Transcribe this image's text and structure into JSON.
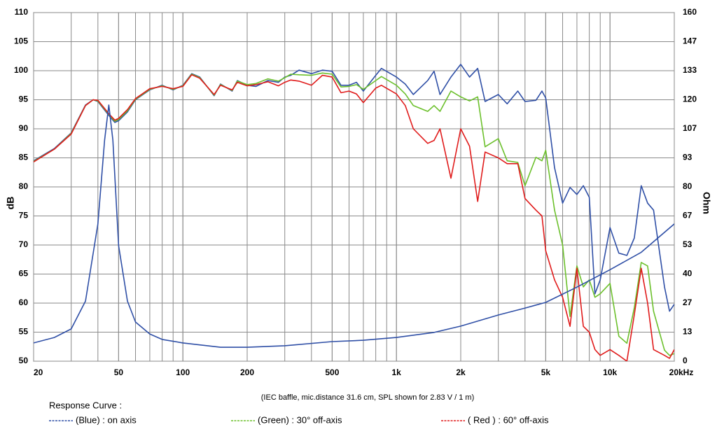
{
  "chart_data": {
    "type": "line",
    "xscale": "log",
    "grid": true,
    "ylabel": "dB",
    "y2label": "Ohm",
    "note": "(IEC baffle, mic.distance 31.6 cm, SPL shown for 2.83 V / 1 m)",
    "legend_title": "Response Curve :",
    "legend": "bottom",
    "xlim": [
      20,
      20000
    ],
    "xticks": [
      20,
      50,
      100,
      200,
      500,
      {
        "value": 1000,
        "label": "1k"
      },
      {
        "value": 2000,
        "label": "2k"
      },
      {
        "value": 5000,
        "label": "5k"
      },
      {
        "value": 10000,
        "label": "10k"
      },
      {
        "value": 20000,
        "label": "20kHz"
      }
    ],
    "ylim": [
      50,
      110
    ],
    "yticks": [
      50,
      55,
      60,
      65,
      70,
      75,
      80,
      85,
      90,
      95,
      100,
      105,
      110
    ],
    "y2lim": [
      0,
      160
    ],
    "y2ticks": [
      0,
      {
        "value": 13.33,
        "label": "13"
      },
      {
        "value": 26.67,
        "label": "27"
      },
      40,
      {
        "value": 53.33,
        "label": "53"
      },
      {
        "value": 66.67,
        "label": "67"
      },
      80,
      {
        "value": 93.33,
        "label": "93"
      },
      {
        "value": 106.67,
        "label": "107"
      },
      120,
      {
        "value": 133.33,
        "label": "133"
      },
      {
        "value": 146.67,
        "label": "147"
      },
      160
    ],
    "x": [
      20,
      25,
      30,
      35,
      38,
      40,
      45,
      48,
      50,
      55,
      60,
      70,
      80,
      90,
      100,
      110,
      120,
      140,
      150,
      170,
      180,
      200,
      220,
      250,
      280,
      300,
      320,
      350,
      400,
      450,
      500,
      550,
      600,
      650,
      700,
      800,
      850,
      1000,
      1100,
      1200,
      1400,
      1500,
      1600,
      1800,
      2000,
      2200,
      2400,
      2600,
      3000,
      3300,
      3700,
      4000,
      4500,
      4800,
      5000,
      5500,
      6000,
      6500,
      7000,
      7500,
      8000,
      8500,
      9000,
      10000,
      11000,
      12000,
      13000,
      14000,
      15000,
      16000,
      18000,
      19000,
      20000
    ],
    "series": [
      {
        "name": "(Blue)  : on axis",
        "color": "#2f4fa6",
        "values": [
          84.5,
          86.6,
          89.3,
          94.1,
          95,
          94.7,
          92.3,
          91.1,
          91.4,
          92.9,
          95,
          96.7,
          97.5,
          96.7,
          97.5,
          99.5,
          98.9,
          95.7,
          97.7,
          96.5,
          98.3,
          97.5,
          97.3,
          98.3,
          98,
          98.9,
          99.2,
          100.1,
          99.5,
          100.1,
          99.9,
          97.5,
          97.5,
          98,
          96.5,
          99.2,
          100.4,
          98.9,
          97.7,
          95.9,
          98.3,
          99.9,
          95.9,
          98.9,
          101.1,
          98.9,
          100.4,
          94.7,
          95.9,
          94.3,
          96.5,
          94.7,
          94.9,
          96.5,
          95.3,
          83.3,
          77.2,
          79.9,
          78.7,
          80.2,
          78.2,
          61.6,
          64,
          73,
          68.6,
          68.2,
          71.2,
          80.2,
          77.2,
          76,
          62.8,
          58.6,
          59.8
        ]
      },
      {
        "name": "(Green) : 30° off-axis",
        "color": "#6cc02c",
        "values": [
          84.4,
          86.5,
          89.2,
          94,
          95,
          94.8,
          92.5,
          91.3,
          91.6,
          93.1,
          95.1,
          96.8,
          97.4,
          96.8,
          97.4,
          99.4,
          98.8,
          95.8,
          97.6,
          96.6,
          98.2,
          97.6,
          97.8,
          98.6,
          98.2,
          98.8,
          99.4,
          99.3,
          99.2,
          99.6,
          99.4,
          97.2,
          97.3,
          97.6,
          96.8,
          98.3,
          99,
          97.5,
          96,
          94,
          93,
          94,
          93,
          96.5,
          95.5,
          94.8,
          95.5,
          86.9,
          88.3,
          84.5,
          84.2,
          80.2,
          85.1,
          84.5,
          86.3,
          76,
          70,
          57.7,
          66.4,
          62.8,
          64,
          61,
          61.6,
          63.4,
          54.3,
          53.1,
          59.2,
          67,
          66.4,
          58.6,
          51.9,
          51,
          51.3
        ]
      },
      {
        "name": "( Red ) : 60° off-axis",
        "color": "#e01b1b",
        "values": [
          84.3,
          86.5,
          89.1,
          94,
          95,
          94.9,
          92.6,
          91.5,
          91.8,
          93.3,
          95.2,
          96.9,
          97.3,
          96.9,
          97.3,
          99.3,
          98.7,
          95.9,
          97.5,
          96.7,
          98,
          97.4,
          97.6,
          98.1,
          97.4,
          98,
          98.4,
          98.2,
          97.5,
          99.2,
          98.9,
          96.2,
          96.5,
          96,
          94.5,
          97,
          97.5,
          96,
          94,
          90,
          87.5,
          88,
          90,
          81.5,
          90,
          87,
          77.5,
          86,
          85,
          84,
          84,
          78,
          76,
          75,
          69,
          64,
          61,
          56,
          66,
          56,
          55,
          52,
          51,
          52,
          51,
          50,
          58,
          66,
          60,
          52,
          51,
          50.5,
          52
        ]
      },
      {
        "axis": "y2",
        "color": "#2f4fa6",
        "x": [
          20,
          25,
          30,
          35,
          40,
          43,
          45,
          47,
          50,
          55,
          60,
          70,
          80,
          100,
          150,
          200,
          300,
          500,
          700,
          1000,
          1500,
          2000,
          3000,
          4000,
          5000,
          7000,
          10000,
          14000,
          20000
        ],
        "values": [
          8.4,
          10.9,
          14.8,
          27.6,
          63,
          101.5,
          117.6,
          101.5,
          53,
          27.6,
          18,
          12.5,
          10,
          8.4,
          6.4,
          6.4,
          7.1,
          9,
          9.6,
          10.9,
          13.2,
          16.1,
          21.2,
          24.4,
          27,
          34,
          42,
          50,
          63
        ]
      }
    ]
  }
}
